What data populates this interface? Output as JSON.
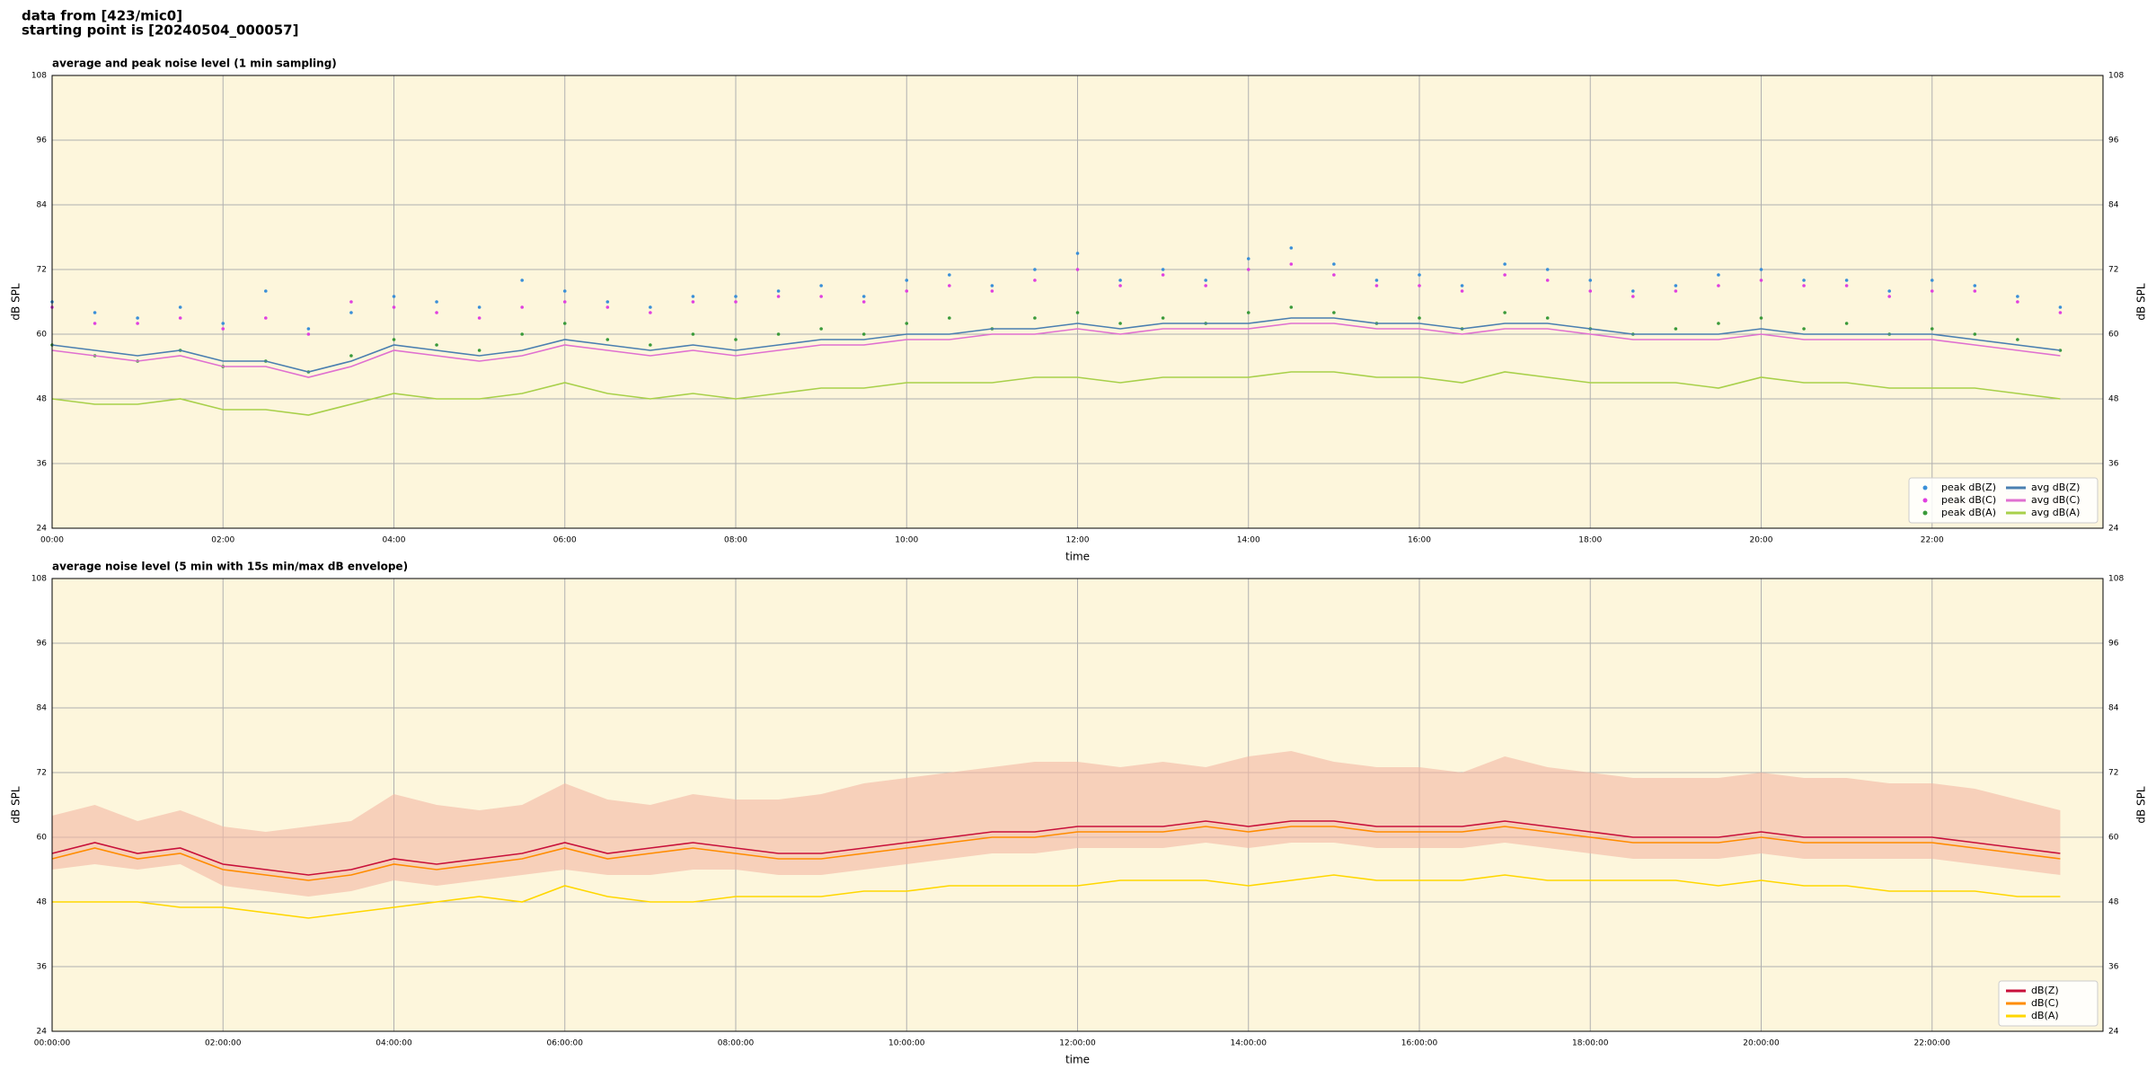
{
  "header": [
    "data from [423/mic0]",
    "starting point is [20240504_000057]"
  ],
  "chart_data": [
    {
      "type": "line",
      "title": "average and peak noise level (1 min sampling)",
      "xlabel": "time",
      "ylabel": "dB SPL",
      "xlim": [
        0,
        24
      ],
      "ylim": [
        24,
        108
      ],
      "yticks": [
        24,
        36,
        48,
        60,
        72,
        84,
        96,
        108
      ],
      "xticks": [
        {
          "value": 0,
          "label": "00:00"
        },
        {
          "value": 2,
          "label": "02:00"
        },
        {
          "value": 4,
          "label": "04:00"
        },
        {
          "value": 6,
          "label": "06:00"
        },
        {
          "value": 8,
          "label": "08:00"
        },
        {
          "value": 10,
          "label": "10:00"
        },
        {
          "value": 12,
          "label": "12:00"
        },
        {
          "value": 14,
          "label": "14:00"
        },
        {
          "value": 16,
          "label": "16:00"
        },
        {
          "value": 18,
          "label": "18:00"
        },
        {
          "value": 20,
          "label": "20:00"
        },
        {
          "value": 22,
          "label": "22:00"
        }
      ],
      "grid": true,
      "legend": "lower right",
      "x": [
        0,
        0.5,
        1,
        1.5,
        2,
        2.5,
        3,
        3.5,
        4,
        4.5,
        5,
        5.5,
        6,
        6.5,
        7,
        7.5,
        8,
        8.5,
        9,
        9.5,
        10,
        10.5,
        11,
        11.5,
        12,
        12.5,
        13,
        13.5,
        14,
        14.5,
        15,
        15.5,
        16,
        16.5,
        17,
        17.5,
        18,
        18.5,
        19,
        19.5,
        20,
        20.5,
        21,
        21.5,
        22,
        22.5,
        23,
        23.5
      ],
      "series": [
        {
          "name": "peak dB(Z)",
          "mark": "scatter",
          "color": "#3a8fd8",
          "values": [
            66,
            64,
            63,
            65,
            62,
            68,
            61,
            64,
            67,
            66,
            65,
            70,
            68,
            66,
            65,
            67,
            67,
            68,
            69,
            67,
            70,
            71,
            69,
            72,
            75,
            70,
            72,
            70,
            74,
            76,
            73,
            70,
            71,
            69,
            73,
            72,
            70,
            68,
            69,
            71,
            72,
            70,
            70,
            68,
            70,
            69,
            67,
            65
          ]
        },
        {
          "name": "peak dB(C)",
          "mark": "scatter",
          "color": "#e040e0",
          "values": [
            65,
            62,
            62,
            63,
            61,
            63,
            60,
            66,
            65,
            64,
            63,
            65,
            66,
            65,
            64,
            66,
            66,
            67,
            67,
            66,
            68,
            69,
            68,
            70,
            72,
            69,
            71,
            69,
            72,
            73,
            71,
            69,
            69,
            68,
            71,
            70,
            68,
            67,
            68,
            69,
            70,
            69,
            69,
            67,
            68,
            68,
            66,
            64
          ]
        },
        {
          "name": "peak dB(A)",
          "mark": "scatter",
          "color": "#3a9a3a",
          "values": [
            58,
            56,
            55,
            57,
            54,
            55,
            53,
            56,
            59,
            58,
            57,
            60,
            62,
            59,
            58,
            60,
            59,
            60,
            61,
            60,
            62,
            63,
            61,
            63,
            64,
            62,
            63,
            62,
            64,
            65,
            64,
            62,
            63,
            61,
            64,
            63,
            61,
            60,
            61,
            62,
            63,
            61,
            62,
            60,
            61,
            60,
            59,
            57
          ]
        },
        {
          "name": "avg dB(Z)",
          "mark": "line",
          "color": "#4a7fb0",
          "values": [
            58,
            57,
            56,
            57,
            55,
            55,
            53,
            55,
            58,
            57,
            56,
            57,
            59,
            58,
            57,
            58,
            57,
            58,
            59,
            59,
            60,
            60,
            61,
            61,
            62,
            61,
            62,
            62,
            62,
            63,
            63,
            62,
            62,
            61,
            62,
            62,
            61,
            60,
            60,
            60,
            61,
            60,
            60,
            60,
            60,
            59,
            58,
            57
          ]
        },
        {
          "name": "avg dB(C)",
          "mark": "line",
          "color": "#e070d0",
          "values": [
            57,
            56,
            55,
            56,
            54,
            54,
            52,
            54,
            57,
            56,
            55,
            56,
            58,
            57,
            56,
            57,
            56,
            57,
            58,
            58,
            59,
            59,
            60,
            60,
            61,
            60,
            61,
            61,
            61,
            62,
            62,
            61,
            61,
            60,
            61,
            61,
            60,
            59,
            59,
            59,
            60,
            59,
            59,
            59,
            59,
            58,
            57,
            56
          ]
        },
        {
          "name": "avg dB(A)",
          "mark": "line",
          "color": "#a8d04a",
          "values": [
            48,
            47,
            47,
            48,
            46,
            46,
            45,
            47,
            49,
            48,
            48,
            49,
            51,
            49,
            48,
            49,
            48,
            49,
            50,
            50,
            51,
            51,
            51,
            52,
            52,
            51,
            52,
            52,
            52,
            53,
            53,
            52,
            52,
            51,
            53,
            52,
            51,
            51,
            51,
            50,
            52,
            51,
            51,
            50,
            50,
            50,
            49,
            48
          ]
        }
      ]
    },
    {
      "type": "line",
      "title": "average noise level (5 min with 15s min/max dB envelope)",
      "xlabel": "time",
      "ylabel": "dB SPL",
      "xlim": [
        0,
        24
      ],
      "ylim": [
        24,
        108
      ],
      "yticks": [
        24,
        36,
        48,
        60,
        72,
        84,
        96,
        108
      ],
      "xticks": [
        {
          "value": 0,
          "label": "00:00:00"
        },
        {
          "value": 2,
          "label": "02:00:00"
        },
        {
          "value": 4,
          "label": "04:00:00"
        },
        {
          "value": 6,
          "label": "06:00:00"
        },
        {
          "value": 8,
          "label": "08:00:00"
        },
        {
          "value": 10,
          "label": "10:00:00"
        },
        {
          "value": 12,
          "label": "12:00:00"
        },
        {
          "value": 14,
          "label": "14:00:00"
        },
        {
          "value": 16,
          "label": "16:00:00"
        },
        {
          "value": 18,
          "label": "18:00:00"
        },
        {
          "value": 20,
          "label": "20:00:00"
        },
        {
          "value": 22,
          "label": "22:00:00"
        }
      ],
      "grid": true,
      "legend": "lower right",
      "x": [
        0,
        0.5,
        1,
        1.5,
        2,
        2.5,
        3,
        3.5,
        4,
        4.5,
        5,
        5.5,
        6,
        6.5,
        7,
        7.5,
        8,
        8.5,
        9,
        9.5,
        10,
        10.5,
        11,
        11.5,
        12,
        12.5,
        13,
        13.5,
        14,
        14.5,
        15,
        15.5,
        16,
        16.5,
        17,
        17.5,
        18,
        18.5,
        19,
        19.5,
        20,
        20.5,
        21,
        21.5,
        22,
        22.5,
        23,
        23.5
      ],
      "envelope": {
        "color": "#f4b8a4",
        "max": [
          64,
          66,
          63,
          65,
          62,
          61,
          62,
          63,
          68,
          66,
          65,
          66,
          70,
          67,
          66,
          68,
          67,
          67,
          68,
          70,
          71,
          72,
          73,
          74,
          74,
          73,
          74,
          73,
          75,
          76,
          74,
          73,
          73,
          72,
          75,
          73,
          72,
          71,
          71,
          71,
          72,
          71,
          71,
          70,
          70,
          69,
          67,
          65
        ],
        "min": [
          54,
          55,
          54,
          55,
          51,
          50,
          49,
          50,
          52,
          51,
          52,
          53,
          54,
          53,
          53,
          54,
          54,
          53,
          53,
          54,
          55,
          56,
          57,
          57,
          58,
          58,
          58,
          59,
          58,
          59,
          59,
          58,
          58,
          58,
          59,
          58,
          57,
          56,
          56,
          56,
          57,
          56,
          56,
          56,
          56,
          55,
          54,
          53
        ]
      },
      "series": [
        {
          "name": "dB(Z)",
          "mark": "line",
          "color": "#c8103a",
          "values": [
            57,
            59,
            57,
            58,
            55,
            54,
            53,
            54,
            56,
            55,
            56,
            57,
            59,
            57,
            58,
            59,
            58,
            57,
            57,
            58,
            59,
            60,
            61,
            61,
            62,
            62,
            62,
            63,
            62,
            63,
            63,
            62,
            62,
            62,
            63,
            62,
            61,
            60,
            60,
            60,
            61,
            60,
            60,
            60,
            60,
            59,
            58,
            57
          ]
        },
        {
          "name": "dB(C)",
          "mark": "line",
          "color": "#ff8c00",
          "values": [
            56,
            58,
            56,
            57,
            54,
            53,
            52,
            53,
            55,
            54,
            55,
            56,
            58,
            56,
            57,
            58,
            57,
            56,
            56,
            57,
            58,
            59,
            60,
            60,
            61,
            61,
            61,
            62,
            61,
            62,
            62,
            61,
            61,
            61,
            62,
            61,
            60,
            59,
            59,
            59,
            60,
            59,
            59,
            59,
            59,
            58,
            57,
            56
          ]
        },
        {
          "name": "dB(A)",
          "mark": "line",
          "color": "#ffd700",
          "values": [
            48,
            48,
            48,
            47,
            47,
            46,
            45,
            46,
            47,
            48,
            49,
            48,
            51,
            49,
            48,
            48,
            49,
            49,
            49,
            50,
            50,
            51,
            51,
            51,
            51,
            52,
            52,
            52,
            51,
            52,
            53,
            52,
            52,
            52,
            53,
            52,
            52,
            52,
            52,
            51,
            52,
            51,
            51,
            50,
            50,
            50,
            49,
            49
          ]
        }
      ]
    }
  ]
}
